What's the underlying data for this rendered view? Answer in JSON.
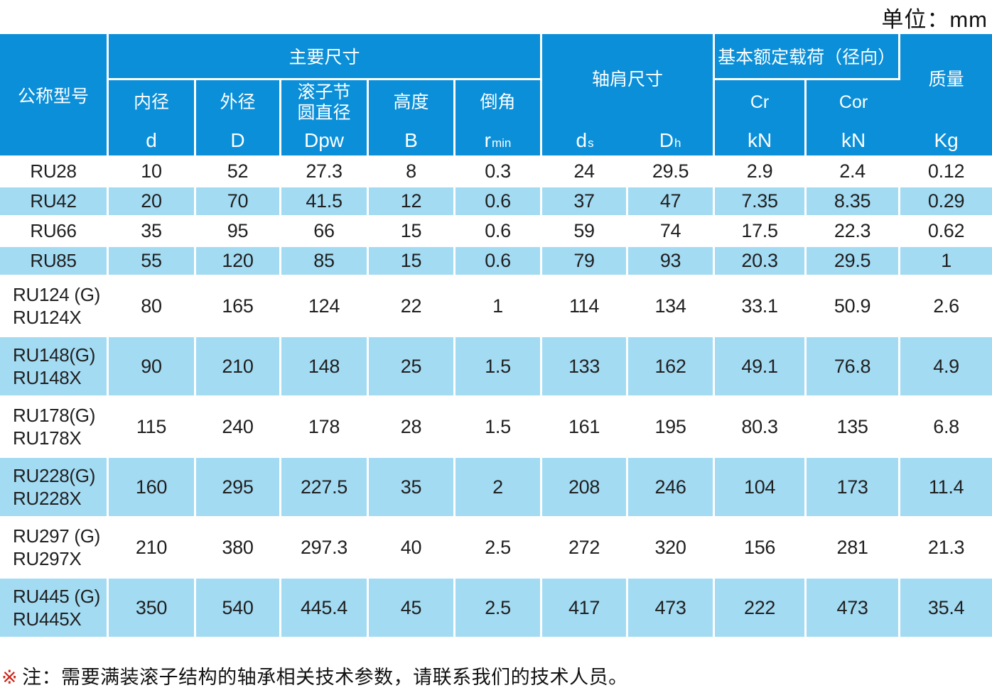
{
  "unit_label": "单位：mm",
  "colors": {
    "header_bg": "#0a8fd8",
    "row_alt_bg": "#a3dbf3",
    "note_marker_color": "#cf2417"
  },
  "table": {
    "header": {
      "model_label": "公称型号",
      "groups": {
        "main_dims": "主要尺寸",
        "shoulder": "轴肩尺寸",
        "load": "基本额定载荷（径向）",
        "mass": "质量"
      },
      "columns": {
        "bore": {
          "line1": "内径",
          "sym": "d"
        },
        "outer_dia": {
          "line1": "外径",
          "sym": "D"
        },
        "pitch_dia": {
          "line1": "滚子节",
          "line2": "圆直径",
          "sym": "Dpw"
        },
        "height": {
          "line1": "高度",
          "sym": "B"
        },
        "chamfer": {
          "line1": "倒角",
          "sym": "r",
          "sub": "min"
        },
        "shoulder_ds": {
          "sym": "d",
          "sub": "s"
        },
        "shoulder_dh": {
          "sym": "D",
          "sub": "h"
        },
        "cr": {
          "line1": "Cr",
          "sym": "kN"
        },
        "cor": {
          "line1": "Cor",
          "sym": "kN"
        },
        "mass_kg": {
          "sym": "Kg"
        }
      }
    },
    "rows": [
      {
        "model": [
          "RU28"
        ],
        "values": [
          "10",
          "52",
          "27.3",
          "8",
          "0.3",
          "24",
          "29.5",
          "2.9",
          "2.4",
          "0.12"
        ]
      },
      {
        "model": [
          "RU42"
        ],
        "values": [
          "20",
          "70",
          "41.5",
          "12",
          "0.6",
          "37",
          "47",
          "7.35",
          "8.35",
          "0.29"
        ]
      },
      {
        "model": [
          "RU66"
        ],
        "values": [
          "35",
          "95",
          "66",
          "15",
          "0.6",
          "59",
          "74",
          "17.5",
          "22.3",
          "0.62"
        ]
      },
      {
        "model": [
          "RU85"
        ],
        "values": [
          "55",
          "120",
          "85",
          "15",
          "0.6",
          "79",
          "93",
          "20.3",
          "29.5",
          "1"
        ]
      },
      {
        "model": [
          "RU124 (G)",
          "RU124X"
        ],
        "values": [
          "80",
          "165",
          "124",
          "22",
          "1",
          "114",
          "134",
          "33.1",
          "50.9",
          "2.6"
        ]
      },
      {
        "model": [
          "RU148(G)",
          "RU148X"
        ],
        "values": [
          "90",
          "210",
          "148",
          "25",
          "1.5",
          "133",
          "162",
          "49.1",
          "76.8",
          "4.9"
        ]
      },
      {
        "model": [
          "RU178(G)",
          "RU178X"
        ],
        "values": [
          "115",
          "240",
          "178",
          "28",
          "1.5",
          "161",
          "195",
          "80.3",
          "135",
          "6.8"
        ]
      },
      {
        "model": [
          "RU228(G)",
          "RU228X"
        ],
        "values": [
          "160",
          "295",
          "227.5",
          "35",
          "2",
          "208",
          "246",
          "104",
          "173",
          "11.4"
        ]
      },
      {
        "model": [
          "RU297 (G)",
          "RU297X"
        ],
        "values": [
          "210",
          "380",
          "297.3",
          "40",
          "2.5",
          "272",
          "320",
          "156",
          "281",
          "21.3"
        ]
      },
      {
        "model": [
          "RU445 (G)",
          "RU445X"
        ],
        "values": [
          "350",
          "540",
          "445.4",
          "45",
          "2.5",
          "417",
          "473",
          "222",
          "473",
          "35.4"
        ]
      }
    ]
  },
  "note": {
    "marker": "※",
    "text": "注：需要满装滚子结构的轴承相关技术参数，请联系我们的技术人员。"
  }
}
